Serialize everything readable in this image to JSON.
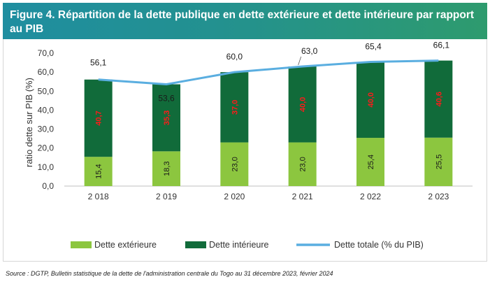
{
  "figure": {
    "title": "Figure 4. Répartition de la dette publique en dette extérieure et dette intérieure par rapport au PIB",
    "source": "Source :  DGTP, Bulletin statistique de la dette de l'administration centrale du Togo au 31 décembre 2023, février 2024"
  },
  "chart_data": {
    "type": "bar",
    "stacked": true,
    "title": "",
    "categories": [
      "2 018",
      "2 019",
      "2 020",
      "2 021",
      "2 022",
      "2 023"
    ],
    "ylabel": "ratio dette sur PIB (%)",
    "xlabel": "",
    "ylim": [
      0,
      70
    ],
    "yticks": [
      "0,0",
      "10,0",
      "20,0",
      "30,0",
      "40,0",
      "50,0",
      "60,0",
      "70,0"
    ],
    "series": [
      {
        "name": "Dette extérieure",
        "kind": "bar",
        "color": "#8cc63f",
        "values": [
          15.4,
          18.3,
          23.0,
          23.0,
          25.4,
          25.5
        ],
        "labels": [
          "15,4",
          "18,3",
          "23,0",
          "23,0",
          "25,4",
          "25,5"
        ],
        "label_color": "#1a1a1a"
      },
      {
        "name": "Dette intérieure",
        "kind": "bar",
        "color": "#116b3a",
        "values": [
          40.7,
          35.3,
          37.0,
          40.0,
          40.0,
          40.6
        ],
        "labels": [
          "40,7",
          "35,3",
          "37,0",
          "40,0",
          "40,0",
          "40,6"
        ],
        "label_color": "#ff1a1a"
      },
      {
        "name": "Dette totale (% du PIB)",
        "kind": "line",
        "color": "#5aaee0",
        "values": [
          56.1,
          53.6,
          60.0,
          63.0,
          65.4,
          66.1
        ],
        "labels": [
          "56,1",
          "53,6",
          "60,0",
          "63,0",
          "65,4",
          "66,1"
        ],
        "label_color": "#1a1a1a"
      }
    ],
    "grid": false,
    "legend_position": "bottom"
  }
}
